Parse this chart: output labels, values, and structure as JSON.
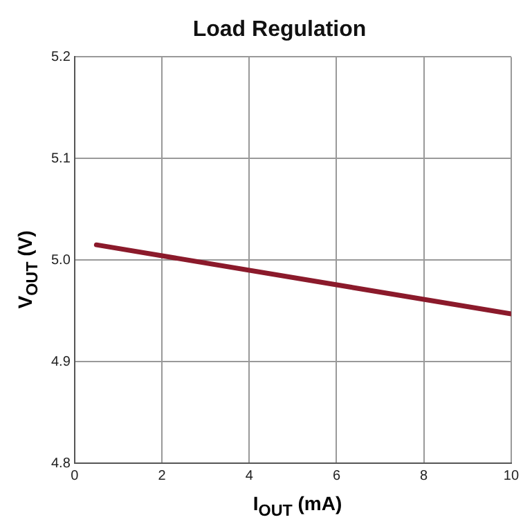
{
  "chart_data": {
    "type": "line",
    "title": "Load Regulation",
    "xlabel": "I$_{OUT}$ (mA)",
    "ylabel": "V$_{OUT}$ (V)",
    "x": [
      0.5,
      10
    ],
    "series": [
      {
        "color": "#8b1a2b",
        "values": [
          5.015,
          4.947
        ]
      }
    ],
    "xlim": [
      0,
      10
    ],
    "xticks": [
      0,
      2,
      4,
      6,
      8,
      10
    ],
    "ylim": [
      4.8,
      5.2
    ],
    "yticks": [
      {
        "value": 4.8,
        "label": "4.8"
      },
      {
        "value": 4.9,
        "label": "4.9"
      },
      {
        "value": 5.0,
        "label": "5.0"
      },
      {
        "value": 5.1,
        "label": "5.1"
      },
      {
        "value": 5.2,
        "label": "5.2"
      }
    ],
    "grid": true,
    "legend": false,
    "marker": "none",
    "line_style": "solid"
  }
}
